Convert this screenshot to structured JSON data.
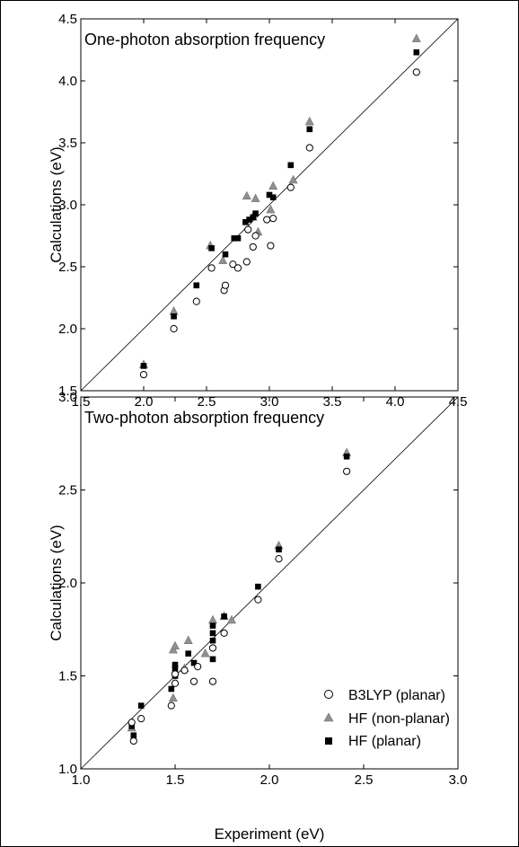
{
  "colors": {
    "b3lyp_stroke": "#000000",
    "b3lyp_fill": "#ffffff",
    "hf_nonplanar_fill": "#909090",
    "hf_planar_fill": "#000000",
    "diagonal": "#000000"
  },
  "chart_data": [
    {
      "type": "scatter",
      "title": "One-photon absorption frequency",
      "xlabel": "",
      "ylabel": "Calculations (eV)",
      "xlim": [
        1.5,
        4.5
      ],
      "ylim": [
        1.5,
        4.5
      ],
      "xticks": [
        "1.5",
        "2.0",
        "2.5",
        "3.0",
        "3.5",
        "4.0",
        "4.5"
      ],
      "yticks": [
        "1.5",
        "2.0",
        "2.5",
        "3.0",
        "3.5",
        "4.0",
        "4.5"
      ],
      "reference_line": "y = x",
      "grid": false,
      "series": [
        {
          "name": "B3LYP (planar)",
          "marker": "open-circle",
          "points": [
            [
              2.0,
              1.63
            ],
            [
              2.24,
              2.0
            ],
            [
              2.42,
              2.22
            ],
            [
              2.54,
              2.49
            ],
            [
              2.64,
              2.31
            ],
            [
              2.65,
              2.35
            ],
            [
              2.71,
              2.52
            ],
            [
              2.75,
              2.49
            ],
            [
              2.82,
              2.54
            ],
            [
              2.83,
              2.8
            ],
            [
              2.87,
              2.66
            ],
            [
              2.89,
              2.75
            ],
            [
              2.98,
              2.88
            ],
            [
              3.01,
              2.67
            ],
            [
              3.03,
              2.89
            ],
            [
              3.17,
              3.14
            ],
            [
              3.32,
              3.46
            ],
            [
              4.17,
              4.07
            ]
          ]
        },
        {
          "name": "HF (non-planar)",
          "marker": "filled-triangle",
          "points": [
            [
              2.0,
              1.71
            ],
            [
              2.24,
              2.14
            ],
            [
              2.53,
              2.67
            ],
            [
              2.63,
              2.55
            ],
            [
              2.82,
              3.07
            ],
            [
              2.87,
              2.9
            ],
            [
              2.89,
              3.05
            ],
            [
              2.91,
              2.78
            ],
            [
              3.01,
              2.96
            ],
            [
              3.03,
              3.15
            ],
            [
              3.19,
              3.2
            ],
            [
              3.32,
              3.67
            ],
            [
              4.17,
              4.34
            ]
          ]
        },
        {
          "name": "HF (planar)",
          "marker": "filled-square",
          "points": [
            [
              2.0,
              1.7
            ],
            [
              2.24,
              2.1
            ],
            [
              2.42,
              2.35
            ],
            [
              2.54,
              2.65
            ],
            [
              2.65,
              2.6
            ],
            [
              2.72,
              2.73
            ],
            [
              2.75,
              2.73
            ],
            [
              2.81,
              2.86
            ],
            [
              2.84,
              2.88
            ],
            [
              2.87,
              2.9
            ],
            [
              2.89,
              2.93
            ],
            [
              3.0,
              3.08
            ],
            [
              3.03,
              3.06
            ],
            [
              3.17,
              3.32
            ],
            [
              3.32,
              3.61
            ],
            [
              4.17,
              4.23
            ]
          ]
        }
      ]
    },
    {
      "type": "scatter",
      "title": "Two-photon absorption frequency",
      "xlabel": "Experiment (eV)",
      "ylabel": "Calculations (eV)",
      "xlim": [
        1.0,
        3.0
      ],
      "ylim": [
        1.0,
        3.0
      ],
      "xticks": [
        "1.0",
        "1.5",
        "2.0",
        "2.5",
        "3.0"
      ],
      "yticks": [
        "1.0",
        "1.5",
        "2.0",
        "2.5",
        "3.0"
      ],
      "reference_line": "y = x",
      "grid": false,
      "legend": "bottom-right",
      "series": [
        {
          "name": "B3LYP (planar)",
          "marker": "open-circle",
          "points": [
            [
              1.27,
              1.25
            ],
            [
              1.28,
              1.15
            ],
            [
              1.32,
              1.27
            ],
            [
              1.48,
              1.34
            ],
            [
              1.5,
              1.46
            ],
            [
              1.5,
              1.51
            ],
            [
              1.55,
              1.53
            ],
            [
              1.6,
              1.47
            ],
            [
              1.62,
              1.55
            ],
            [
              1.7,
              1.47
            ],
            [
              1.7,
              1.65
            ],
            [
              1.76,
              1.73
            ],
            [
              1.94,
              1.91
            ],
            [
              2.05,
              2.13
            ],
            [
              2.41,
              2.6
            ]
          ]
        },
        {
          "name": "HF (non-planar)",
          "marker": "filled-triangle",
          "points": [
            [
              1.27,
              1.22
            ],
            [
              1.49,
              1.38
            ],
            [
              1.49,
              1.64
            ],
            [
              1.5,
              1.66
            ],
            [
              1.55,
              1.54
            ],
            [
              1.57,
              1.69
            ],
            [
              1.66,
              1.62
            ],
            [
              1.7,
              1.8
            ],
            [
              1.76,
              1.82
            ],
            [
              1.8,
              1.8
            ],
            [
              2.05,
              2.2
            ],
            [
              2.41,
              2.7
            ]
          ]
        },
        {
          "name": "HF (planar)",
          "marker": "filled-square",
          "points": [
            [
              1.27,
              1.23
            ],
            [
              1.28,
              1.18
            ],
            [
              1.32,
              1.34
            ],
            [
              1.48,
              1.43
            ],
            [
              1.5,
              1.5
            ],
            [
              1.5,
              1.54
            ],
            [
              1.5,
              1.56
            ],
            [
              1.57,
              1.62
            ],
            [
              1.6,
              1.57
            ],
            [
              1.7,
              1.59
            ],
            [
              1.7,
              1.69
            ],
            [
              1.7,
              1.73
            ],
            [
              1.7,
              1.77
            ],
            [
              1.76,
              1.82
            ],
            [
              1.94,
              1.98
            ],
            [
              2.05,
              2.18
            ],
            [
              2.41,
              2.68
            ]
          ]
        }
      ]
    }
  ]
}
